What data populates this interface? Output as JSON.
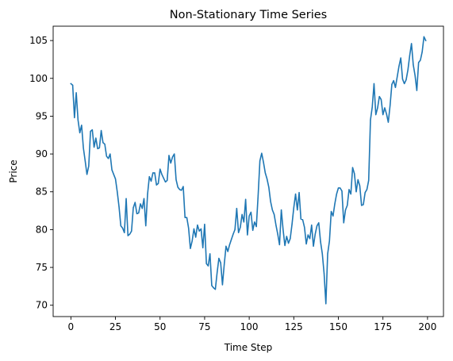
{
  "chart_data": {
    "type": "line",
    "title": "Non-Stationary Time Series",
    "xlabel": "Time Step",
    "ylabel": "Price",
    "xlim": [
      -9.95,
      208.95
    ],
    "ylim": [
      68.5,
      106.9
    ],
    "xticks": [
      0,
      25,
      50,
      75,
      100,
      125,
      150,
      175,
      200
    ],
    "yticks": [
      70,
      75,
      80,
      85,
      90,
      95,
      100,
      105
    ],
    "grid": false,
    "legend": "none",
    "color": "#1f77b4",
    "series": [
      {
        "values": [
          99.3,
          99.1,
          94.8,
          98.1,
          94.5,
          92.8,
          93.8,
          90.8,
          89.1,
          87.3,
          88.4,
          93.0,
          93.2,
          90.9,
          92.1,
          90.7,
          90.8,
          93.1,
          91.5,
          91.3,
          89.7,
          89.4,
          90.0,
          87.9,
          87.3,
          86.7,
          85.0,
          83.0,
          80.5,
          80.2,
          79.6,
          84.1,
          79.2,
          79.4,
          79.8,
          82.9,
          83.6,
          82.1,
          82.2,
          83.4,
          82.8,
          84.1,
          80.5,
          84.7,
          87.0,
          86.4,
          87.5,
          87.5,
          85.9,
          86.1,
          88.0,
          87.3,
          86.8,
          86.3,
          86.5,
          89.8,
          88.8,
          89.6,
          90.0,
          86.6,
          85.6,
          85.3,
          85.2,
          85.7,
          81.6,
          81.6,
          80.2,
          77.5,
          78.5,
          80.1,
          79.0,
          80.6,
          79.8,
          80.1,
          77.6,
          80.7,
          75.5,
          75.2,
          76.8,
          72.6,
          72.3,
          72.1,
          74.3,
          76.2,
          75.6,
          72.7,
          75.4,
          77.8,
          77.1,
          78.0,
          78.7,
          79.4,
          80.0,
          82.8,
          79.6,
          80.3,
          82.0,
          81.0,
          84.0,
          79.3,
          81.8,
          82.3,
          79.9,
          81.0,
          80.4,
          84.5,
          89.1,
          90.1,
          88.9,
          87.5,
          86.7,
          85.6,
          83.7,
          82.6,
          82.0,
          80.6,
          79.4,
          78.0,
          82.6,
          80.0,
          77.9,
          79.1,
          78.2,
          78.8,
          80.7,
          82.9,
          84.7,
          82.6,
          84.9,
          81.4,
          81.3,
          80.3,
          78.1,
          79.3,
          78.8,
          80.6,
          77.8,
          79.4,
          80.5,
          80.9,
          78.4,
          76.8,
          74.2,
          70.2,
          76.8,
          78.5,
          82.4,
          81.8,
          83.4,
          84.7,
          85.5,
          85.5,
          85.1,
          80.9,
          82.6,
          83.2,
          85.3,
          84.7,
          88.2,
          87.4,
          85.0,
          86.6,
          85.8,
          83.2,
          83.3,
          84.9,
          85.3,
          86.5,
          94.5,
          96.2,
          99.3,
          95.2,
          96.1,
          97.6,
          97.2,
          95.2,
          96.1,
          95.3,
          94.2,
          96.4,
          99.2,
          99.7,
          98.8,
          100.2,
          101.6,
          102.7,
          99.9,
          99.3,
          99.8,
          101.1,
          103.0,
          104.6,
          101.8,
          100.4,
          98.4,
          102.1,
          102.4,
          103.5,
          105.5,
          105.0
        ]
      }
    ]
  }
}
